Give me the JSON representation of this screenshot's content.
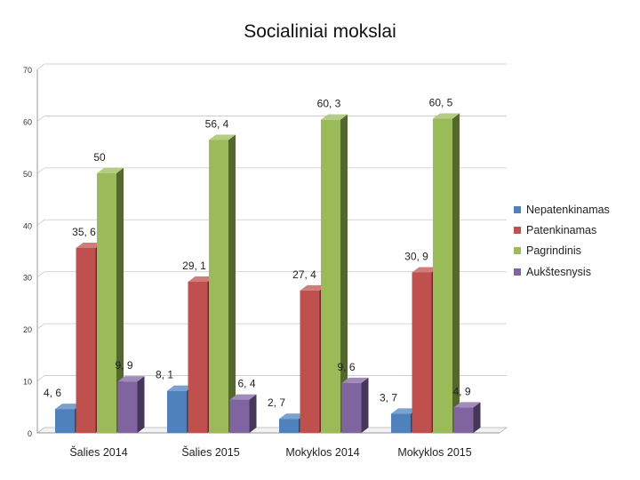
{
  "chart_data": {
    "type": "bar",
    "title": "Socialiniai mokslai",
    "categories": [
      "Šalies 2014",
      "Šalies 2015",
      "Mokyklos 2014",
      "Mokyklos 2015"
    ],
    "series": [
      {
        "name": "Nepatenkinamas",
        "color": "#4f81bd",
        "values": [
          4.6,
          8.1,
          2.7,
          3.7
        ],
        "labels": [
          "4, 6",
          "8, 1",
          "2, 7",
          "3, 7"
        ]
      },
      {
        "name": "Patenkinamas",
        "color": "#c0504d",
        "values": [
          35.6,
          29.1,
          27.4,
          30.9
        ],
        "labels": [
          "35, 6",
          "29, 1",
          "27, 4",
          "30, 9"
        ]
      },
      {
        "name": "Pagrindinis",
        "color": "#9bbb59",
        "values": [
          50,
          56.4,
          60.3,
          60.5
        ],
        "labels": [
          "50",
          "56, 4",
          "60, 3",
          "60, 5"
        ]
      },
      {
        "name": "Aukštesnysis",
        "color": "#8064a2",
        "values": [
          9.9,
          6.4,
          9.6,
          4.9
        ],
        "labels": [
          "9, 9",
          "6, 4",
          "9, 6",
          "4, 9"
        ]
      }
    ],
    "y_ticks": [
      "0",
      "10",
      "20",
      "30",
      "40",
      "50",
      "60",
      "70"
    ],
    "ylim": [
      0,
      70
    ],
    "xlabel": "",
    "ylabel": "",
    "grid": true,
    "legend_position": "right"
  }
}
